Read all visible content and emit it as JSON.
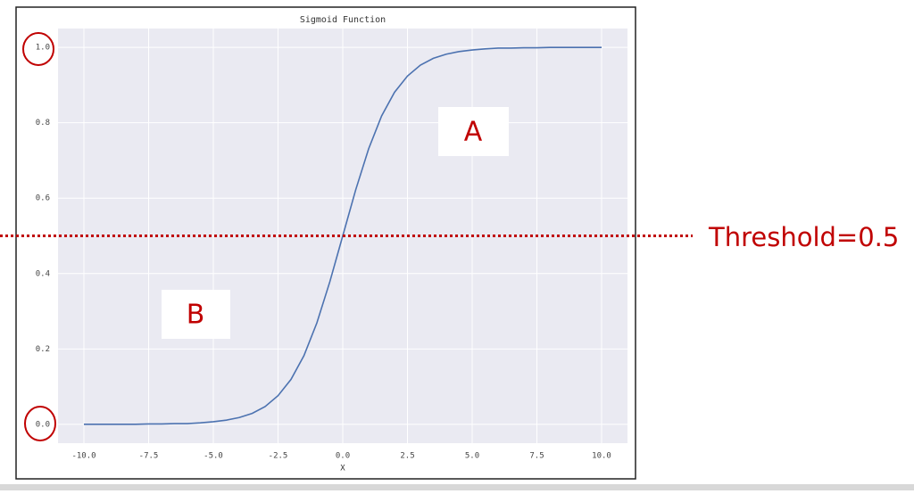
{
  "chart_data": {
    "type": "line",
    "title": "Sigmoid Function",
    "xlabel": "X",
    "x": [
      -10,
      -9.5,
      -9,
      -8.5,
      -8,
      -7.5,
      -7,
      -6.5,
      -6,
      -5.5,
      -5,
      -4.5,
      -4,
      -3.5,
      -3,
      -2.5,
      -2,
      -1.5,
      -1,
      -0.5,
      0,
      0.5,
      1,
      1.5,
      2,
      2.5,
      3,
      3.5,
      4,
      4.5,
      5,
      5.5,
      6,
      6.5,
      7,
      7.5,
      8,
      8.5,
      9,
      9.5,
      10
    ],
    "series": [
      {
        "color": "#4c72b0",
        "values": [
          0.0,
          0.0,
          0.0,
          0.0,
          0.0,
          0.001,
          0.001,
          0.002,
          0.002,
          0.004,
          0.007,
          0.011,
          0.018,
          0.029,
          0.047,
          0.076,
          0.119,
          0.182,
          0.269,
          0.378,
          0.5,
          0.622,
          0.731,
          0.818,
          0.881,
          0.924,
          0.953,
          0.971,
          0.982,
          0.989,
          0.993,
          0.996,
          0.998,
          0.998,
          0.999,
          0.999,
          1.0,
          1.0,
          1.0,
          1.0,
          1.0
        ]
      }
    ],
    "xlim": [
      -11,
      11
    ],
    "ylim": [
      -0.05,
      1.05
    ],
    "xticks": [
      {
        "value": -10,
        "label": "-10.0"
      },
      {
        "value": -7.5,
        "label": "-7.5"
      },
      {
        "value": -5,
        "label": "-5.0"
      },
      {
        "value": -2.5,
        "label": "-2.5"
      },
      {
        "value": 0,
        "label": "0.0"
      },
      {
        "value": 2.5,
        "label": "2.5"
      },
      {
        "value": 5,
        "label": "5.0"
      },
      {
        "value": 7.5,
        "label": "7.5"
      },
      {
        "value": 10,
        "label": "10.0"
      }
    ],
    "yticks": [
      {
        "value": 0,
        "label": "0.0"
      },
      0.2,
      0.4,
      0.6,
      0.8,
      {
        "value": 1,
        "label": "1.0"
      }
    ],
    "grid": true,
    "threshold": 0.5,
    "annotations": {
      "threshold": "Threshold=0.5",
      "region_a": "A",
      "region_b": "B"
    }
  }
}
